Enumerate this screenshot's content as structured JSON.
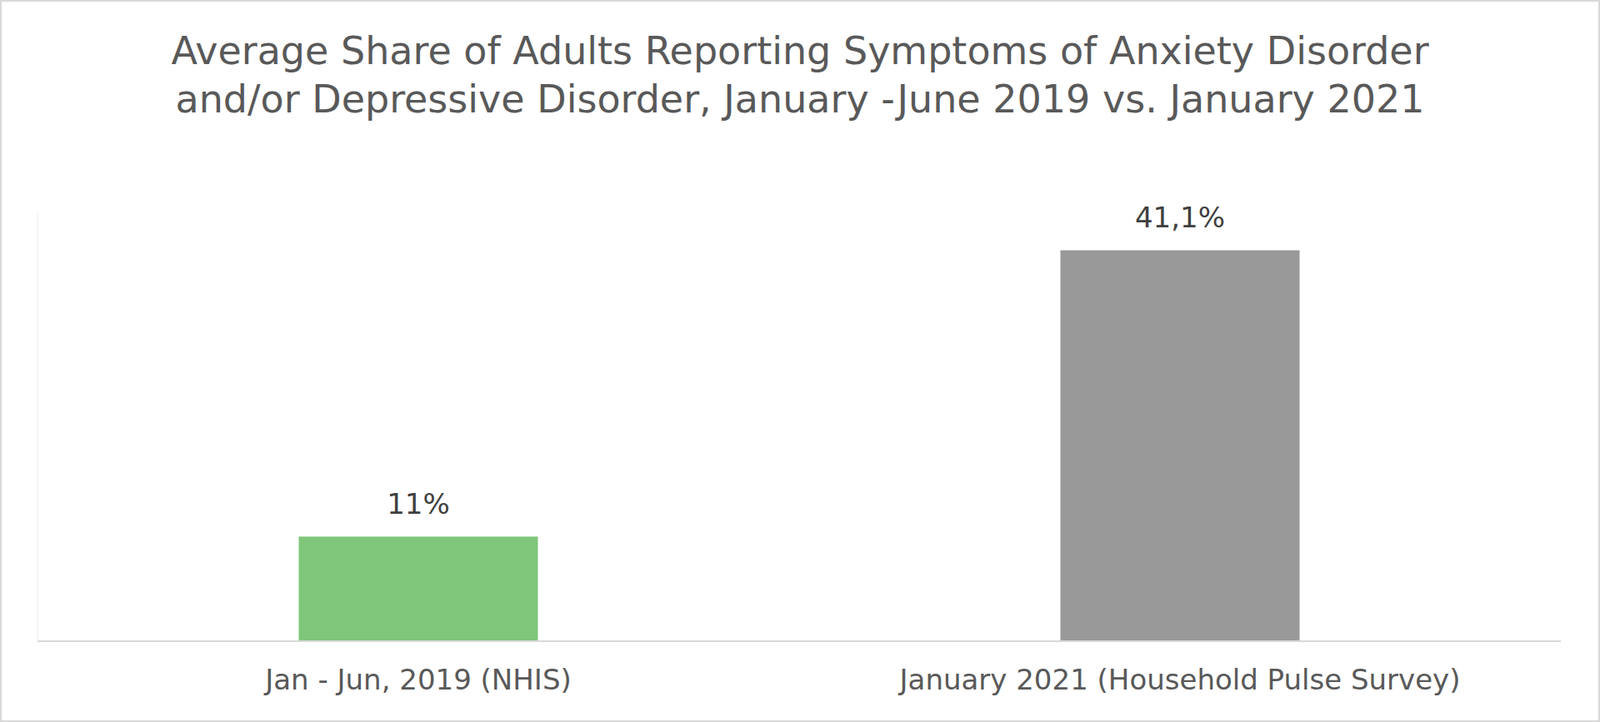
{
  "chart_data": {
    "type": "bar",
    "title": "Average Share of Adults Reporting Symptoms of Anxiety Disorder and/or Depressive Disorder, January -June 2019 vs. January 2021",
    "categories": [
      "Jan - Jun, 2019 (NHIS)",
      "January 2021 (Household Pulse Survey)"
    ],
    "values": [
      11,
      41.1
    ],
    "value_labels": [
      "11%",
      "41,1%"
    ],
    "colors": [
      "#7fc67a",
      "#999999"
    ],
    "ylim": [
      0,
      45
    ],
    "grid": false,
    "data_labels": true,
    "tick_labels": "x"
  }
}
